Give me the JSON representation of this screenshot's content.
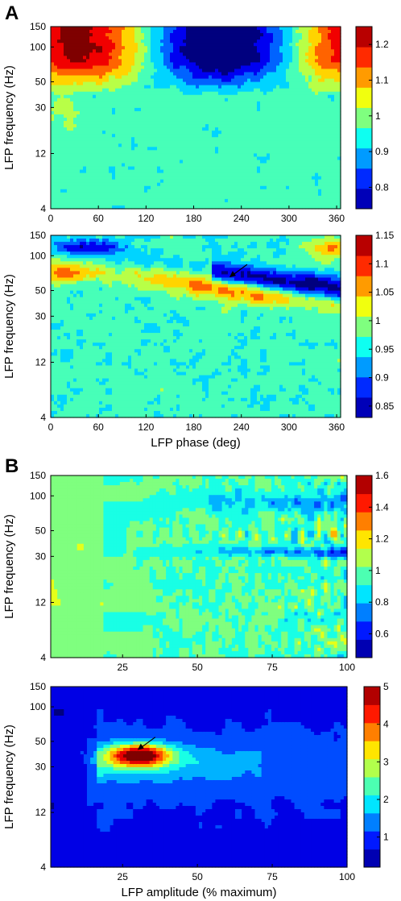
{
  "panel_labels": {
    "A": "A",
    "B": "B"
  },
  "colors": {
    "jet": [
      "#00007f",
      "#0000ff",
      "#007fff",
      "#00ffff",
      "#7fff7f",
      "#ffff00",
      "#ff7f00",
      "#ff0000",
      "#7f0000"
    ]
  },
  "chart_data": [
    {
      "type": "heatmap",
      "panel": "A",
      "ylabel": "LFP frequency (Hz)",
      "xlabel": "",
      "x_ticks": [
        "0",
        "60",
        "120",
        "180",
        "240",
        "300",
        "360"
      ],
      "y_ticks": [
        "150",
        "100",
        "50",
        "30",
        "12",
        "4"
      ],
      "xlim": [
        0,
        365
      ],
      "y_scale": "log",
      "ylim": [
        4,
        150
      ],
      "colorbar": {
        "min": 0.74,
        "max": 1.25,
        "ticks": [
          "1.2",
          "1.1",
          "1",
          "0.9",
          "0.8"
        ]
      },
      "description_fields": {
        "high_region": "gamma 60-150 Hz near phase 0-90 deg, value ~1.2",
        "low_region": "gamma 60-150 Hz near phase 200-300 deg, value ~0.78"
      }
    },
    {
      "type": "heatmap",
      "panel": "A",
      "ylabel": "LFP frequency (Hz)",
      "xlabel": "LFP phase (deg)",
      "x_ticks": [
        "0",
        "60",
        "120",
        "180",
        "240",
        "300",
        "360"
      ],
      "y_ticks": [
        "150",
        "100",
        "50",
        "30",
        "12",
        "4"
      ],
      "xlim": [
        0,
        365
      ],
      "y_scale": "log",
      "ylim": [
        4,
        150
      ],
      "colorbar": {
        "min": 0.83,
        "max": 1.15,
        "ticks": [
          "1.15",
          "1.1",
          "1.05",
          "1",
          "0.95",
          "0.9",
          "0.85"
        ]
      },
      "annotation": {
        "type": "arrow",
        "x": 225,
        "y": 65
      }
    },
    {
      "type": "heatmap",
      "panel": "B",
      "ylabel": "LFP frequency (Hz)",
      "xlabel": "",
      "x_ticks": [
        "25",
        "50",
        "75",
        "100"
      ],
      "y_ticks": [
        "150",
        "100",
        "50",
        "30",
        "12",
        "4"
      ],
      "xlim": [
        1,
        100
      ],
      "y_scale": "log",
      "ylim": [
        4,
        150
      ],
      "colorbar": {
        "min": 0.45,
        "max": 1.6,
        "ticks": [
          "1.6",
          "1.4",
          "1.2",
          "1",
          "0.8",
          "0.6"
        ]
      }
    },
    {
      "type": "heatmap",
      "panel": "B",
      "ylabel": "LFP frequency (Hz)",
      "xlabel": "LFP amplitude (% maximum)",
      "x_ticks": [
        "25",
        "50",
        "75",
        "100"
      ],
      "y_ticks": [
        "150",
        "100",
        "50",
        "30",
        "12",
        "4"
      ],
      "xlim": [
        1,
        100
      ],
      "y_scale": "log",
      "ylim": [
        4,
        150
      ],
      "colorbar": {
        "min": 0.2,
        "max": 5,
        "ticks": [
          "5",
          "4",
          "3",
          "2",
          "1"
        ]
      },
      "annotation": {
        "type": "arrow",
        "x": 30,
        "y": 42
      }
    }
  ]
}
